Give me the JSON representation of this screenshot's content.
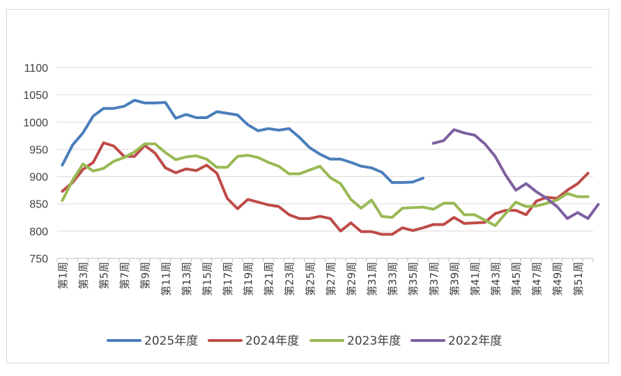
{
  "chart_data": {
    "type": "line",
    "title": "",
    "xlabel": "",
    "ylabel": "",
    "ylim": [
      750,
      1100
    ],
    "yticks": [
      750,
      800,
      850,
      900,
      950,
      1000,
      1050,
      1100
    ],
    "grid": "horizontal",
    "legend_position": "bottom",
    "x_tick_labels": [
      "第1周",
      "第3周",
      "第5周",
      "第7周",
      "第9周",
      "第11周",
      "第13周",
      "第15周",
      "第17周",
      "第19周",
      "第21周",
      "第23周",
      "第25周",
      "第27周",
      "第29周",
      "第31周",
      "第33周",
      "第35周",
      "第37周",
      "第39周",
      "第41周",
      "第43周",
      "第45周",
      "第47周",
      "第49周",
      "第51周"
    ],
    "series": [
      {
        "name": "2025年度",
        "color": "#4a7ebb",
        "values": [
          921,
          958,
          980,
          1011,
          1025,
          1025,
          1029,
          1040,
          1035,
          1035,
          1036,
          1007,
          1014,
          1008,
          1008,
          1019,
          1016,
          1013,
          995,
          984,
          988,
          985,
          988,
          972,
          953,
          941,
          932,
          932,
          926,
          919,
          916,
          908,
          889,
          889,
          890,
          897,
          null,
          null,
          null,
          null,
          null,
          null,
          null,
          null,
          null,
          null,
          null,
          null,
          null,
          null,
          null,
          null
        ]
      },
      {
        "name": "2024年度",
        "color": "#be4b48",
        "values": [
          873,
          889,
          913,
          926,
          962,
          956,
          937,
          937,
          957,
          943,
          916,
          907,
          914,
          911,
          921,
          906,
          860,
          841,
          858,
          853,
          848,
          845,
          830,
          823,
          823,
          827,
          823,
          800,
          815,
          799,
          799,
          794,
          794,
          806,
          801,
          806,
          812,
          812,
          825,
          814,
          815,
          816,
          832,
          838,
          838,
          830,
          855,
          862,
          860,
          875,
          887,
          906
        ]
      },
      {
        "name": "2023年度",
        "color": "#98b954",
        "values": [
          856,
          893,
          923,
          910,
          915,
          928,
          935,
          945,
          960,
          960,
          944,
          931,
          936,
          938,
          932,
          917,
          917,
          937,
          939,
          935,
          926,
          919,
          905,
          905,
          912,
          919,
          898,
          887,
          858,
          842,
          857,
          827,
          825,
          842,
          843,
          844,
          840,
          851,
          851,
          830,
          830,
          820,
          810,
          832,
          853,
          845,
          846,
          851,
          857,
          869,
          863,
          863
        ]
      },
      {
        "name": "2022年度",
        "color": "#7d60a0",
        "values": [
          null,
          null,
          null,
          null,
          null,
          null,
          null,
          null,
          null,
          null,
          null,
          null,
          null,
          null,
          null,
          null,
          null,
          null,
          null,
          null,
          null,
          null,
          null,
          null,
          null,
          null,
          null,
          null,
          null,
          null,
          null,
          null,
          null,
          null,
          null,
          null,
          961,
          966,
          986,
          980,
          976,
          960,
          937,
          903,
          875,
          887,
          872,
          860,
          845,
          823,
          834,
          823,
          849
        ]
      }
    ]
  }
}
